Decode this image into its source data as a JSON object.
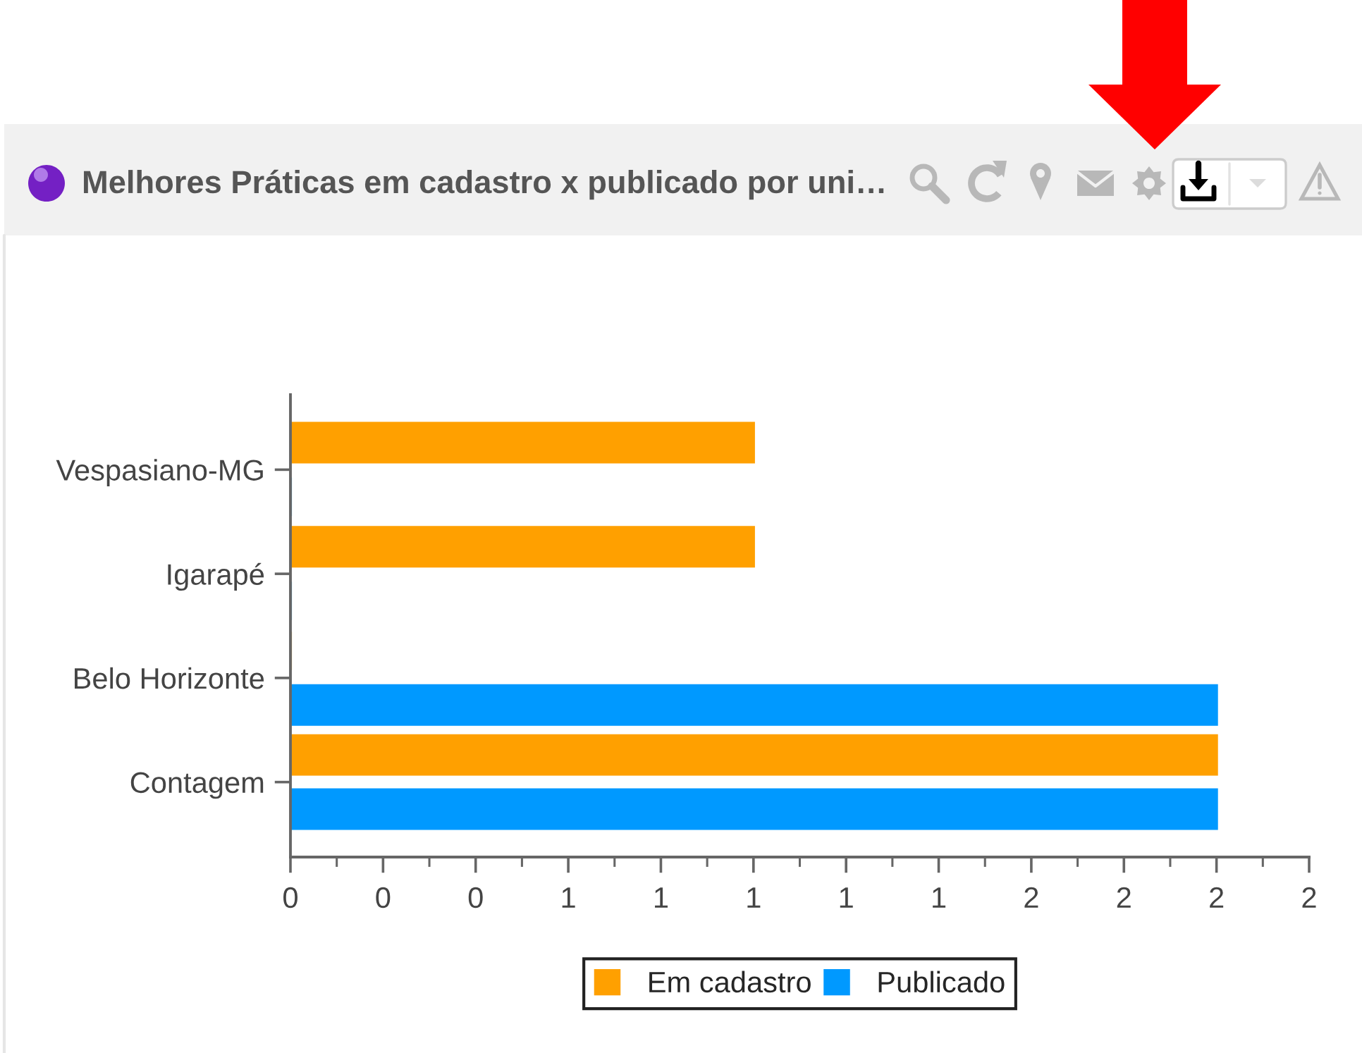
{
  "chart_data": {
    "type": "bar",
    "orientation": "horizontal",
    "title": "Melhores Práticas em cadastro x publicado por uni…",
    "categories": [
      "Vespasiano-MG",
      "Igarapé",
      "Belo Horizonte",
      "Contagem"
    ],
    "series": [
      {
        "name": "Em cadastro",
        "color": "#ffa000",
        "values": [
          1,
          1,
          0,
          2
        ]
      },
      {
        "name": "Publicado",
        "color": "#0099ff",
        "values": [
          0,
          0,
          2,
          2
        ]
      }
    ],
    "xlim": [
      0,
      2.2
    ],
    "xticks": [
      0,
      {
        "value": 0.2,
        "label": "0"
      },
      {
        "value": 0.4,
        "label": "0"
      },
      {
        "value": 0.6,
        "label": "1"
      },
      {
        "value": 0.8,
        "label": "1"
      },
      1,
      {
        "value": 1.2,
        "label": "1"
      },
      {
        "value": 1.4,
        "label": "1"
      },
      {
        "value": 1.6,
        "label": "2"
      },
      {
        "value": 1.8,
        "label": "2"
      },
      2,
      {
        "value": 2.2,
        "label": "2"
      }
    ],
    "legend": "bottom"
  }
}
